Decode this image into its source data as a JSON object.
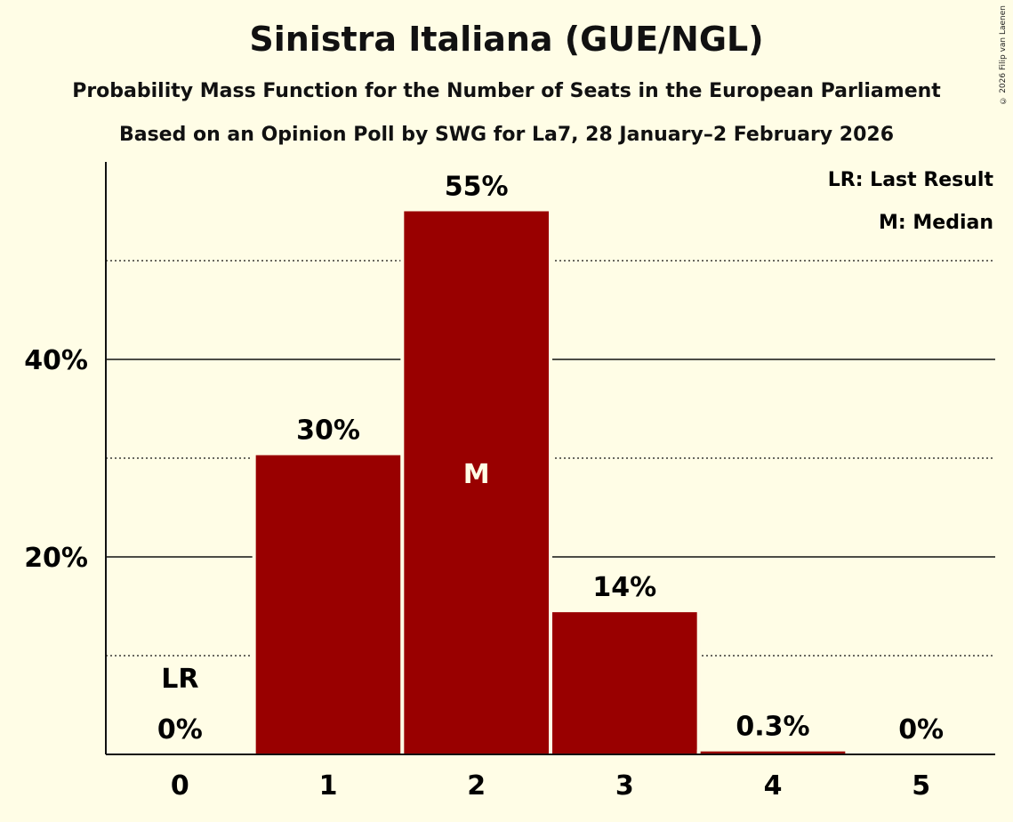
{
  "chart_data": {
    "type": "bar",
    "title": "Sinistra Italiana (GUE/NGL)",
    "subtitle": "Probability Mass Function for the Number of Seats in the European Parliament",
    "subtitle2": "Based on an Opinion Poll by SWG for La7, 28 January–2 February 2026",
    "copyright": "© 2026 Filip van Laenen",
    "categories": [
      "0",
      "1",
      "2",
      "3",
      "4",
      "5"
    ],
    "values": [
      0,
      30.3,
      55,
      14.4,
      0.3,
      0
    ],
    "value_labels": [
      "0%",
      "30%",
      "55%",
      "14%",
      "0.3%",
      "0%"
    ],
    "ylim": [
      0,
      60
    ],
    "yticks_major": [
      20,
      40
    ],
    "ytick_labels": [
      "20%",
      "40%"
    ],
    "yticks_minor": [
      10,
      30,
      50
    ],
    "last_result_index": 0,
    "last_result_label": "LR",
    "median_index": 2,
    "median_label": "M",
    "legend": [
      "LR: Last Result",
      "M: Median"
    ],
    "bar_color": "#990000"
  }
}
